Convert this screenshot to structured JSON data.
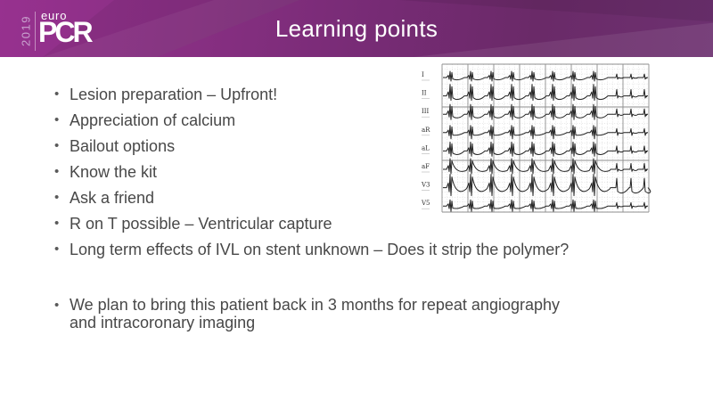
{
  "header": {
    "title": "Learning points",
    "logo": {
      "year": "2019",
      "brand_top": "euro",
      "brand_main": "PCR"
    },
    "colors": {
      "banner_left": "#97318f",
      "banner_right": "#6d3170",
      "title_text": "#ffffff",
      "year_text": "#c9a3cf"
    }
  },
  "content": {
    "bullet_char": "•",
    "text_color": "#484848",
    "bullets": [
      "Lesion preparation – Upfront!",
      "Appreciation of calcium",
      "Bailout options",
      "Know the kit",
      "Ask a friend",
      "R on T possible – Ventricular capture",
      "Long term effects of IVL on stent unknown – Does it strip the polymer?"
    ],
    "closing_bullet_lines": [
      "We plan to bring this patient back in 3 months for repeat angiography",
      "and intracoronary imaging"
    ]
  },
  "ecg": {
    "lead_labels": [
      "I",
      "II",
      "III",
      "aR",
      "aL",
      "aF",
      "V3",
      "V5"
    ]
  }
}
